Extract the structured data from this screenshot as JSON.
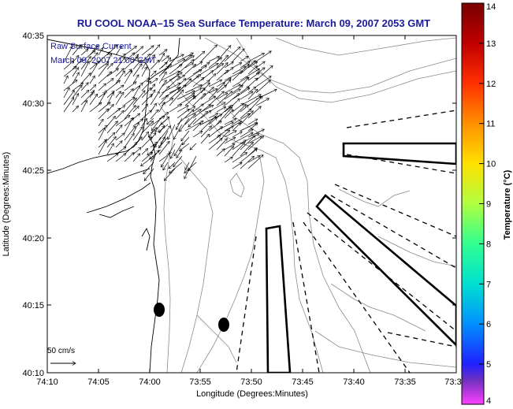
{
  "title": "RU COOL  NOAA–15  Sea Surface Temperature:  March 09, 2007 2053 GMT",
  "legend": {
    "line1": "Raw Surface Current",
    "line2": "March 09, 2007 21:00 GMT"
  },
  "scale_label": "50 cm/s",
  "xaxis": {
    "label": "Longitude (Degrees:Minutes)",
    "ticks": [
      "74:10",
      "74:05",
      "74:00",
      "73:55",
      "73:50",
      "73:45",
      "73:40",
      "73:35",
      "73:3"
    ]
  },
  "yaxis": {
    "label": "Latitude (Degrees:Minutes)",
    "ticks": [
      "40:35",
      "40:30",
      "40:25",
      "40:20",
      "40:15",
      "40:10"
    ]
  },
  "colorbar": {
    "title": "Temperature (°C)",
    "ticks": [
      "14",
      "13",
      "12",
      "11",
      "10",
      "9",
      "8",
      "7",
      "6",
      "5",
      "4"
    ],
    "colors": [
      "#7a0000",
      "#c00000",
      "#ff3000",
      "#ff9000",
      "#ffe000",
      "#b0ff40",
      "#30ff90",
      "#00e0d0",
      "#0090ff",
      "#2020ff",
      "#7030c0",
      "#ff40ff"
    ]
  },
  "chart_data": {
    "type": "map",
    "xlim": [
      "74:10",
      "73:30"
    ],
    "ylim": [
      "40:10",
      "40:35"
    ],
    "colorbar_range": [
      4,
      14
    ],
    "markers": [
      {
        "name": "black-dot-1",
        "lon": "74:00",
        "lat": "40:14.7"
      },
      {
        "name": "black-dot-2",
        "lon": "73:57",
        "lat": "40:13.5"
      }
    ]
  }
}
